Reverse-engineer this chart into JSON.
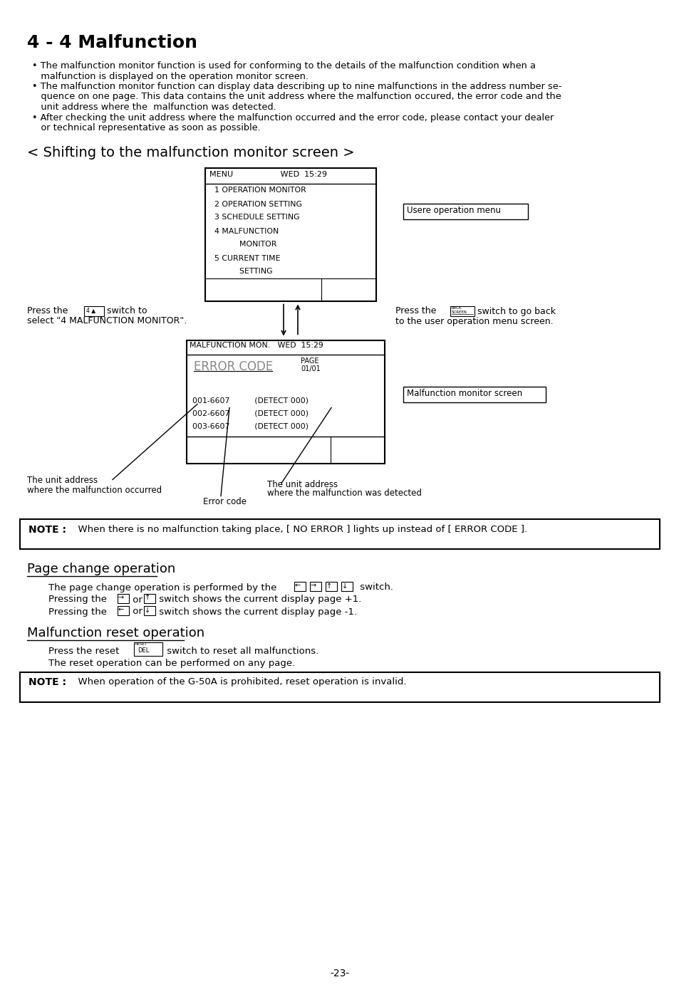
{
  "title": "4 - 4 Malfunction",
  "background_color": "#ffffff",
  "page_number": "-23-",
  "bullet1a": "• The malfunction monitor function is used for conforming to the details of the malfunction condition when a",
  "bullet1b": "   malfunction is displayed on the operation monitor screen.",
  "bullet2a": "• The malfunction monitor function can display data describing up to nine malfunctions in the address number se-",
  "bullet2b": "   quence on one page. This data contains the unit address where the malfunction occured, the error code and the",
  "bullet2c": "   unit address where the  malfunction was detected.",
  "bullet3a": "• After checking the unit address where the malfunction occurred and the error code, please contact your dealer",
  "bullet3b": "   or technical representative as soon as possible.",
  "section1_title": "< Shifting to the malfunction monitor screen >",
  "menu_header": "MENU                   WED  15:29",
  "menu_items": [
    "  1 OPERATION MONITOR",
    "  2 OPERATION SETTING",
    "  3 SCHEDULE SETTING",
    "  4 MALFUNCTION",
    "            MONITOR",
    "  5 CURRENT TIME",
    "            SETTING"
  ],
  "label_user_op_menu": "Usere operation menu",
  "press_left1": "Press the",
  "press_left2": " switch to",
  "press_left3": "select \"4 MALFUNCTION MONITOR\".",
  "press_right1": "Press the",
  "press_right2": " switch to go back",
  "press_right3": "to the user operation menu screen.",
  "malf_header": "MALFUNCTION MON.   WED  15:29",
  "malf_page_label": "PAGE",
  "malf_page_value": "01/01",
  "malf_error_label": "ERROR CODE",
  "malf_rows": [
    "001-6607          (DETECT 000)",
    "002-6607          (DETECT 000)",
    "003-6607          (DETECT 000)"
  ],
  "label_malf_screen": "Malfunction monitor screen",
  "ann1a": "The unit address",
  "ann1b": "where the malfunction occurred",
  "ann2": "Error code",
  "ann3a": "The unit address",
  "ann3b": "where the malfunction was detected",
  "note1_bold": "NOTE :",
  "note1_text": "  When there is no malfunction taking place, [ NO ERROR ] lights up instead of [ ERROR CODE ].",
  "section2_title": "Page change operation",
  "pc_line1a": "The page change operation is performed by the",
  "pc_line1b": " switch.",
  "pc_line2a": "Pressing the",
  "pc_line2b": " or ",
  "pc_line2c": " switch shows the current display page +1.",
  "pc_line3a": "Pressing the",
  "pc_line3b": " or ",
  "pc_line3c": " switch shows the current display page -1.",
  "section3_title": "Malfunction reset operation",
  "reset_line1a": "Press the reset",
  "reset_line1b": " switch to reset all malfunctions.",
  "reset_line2": "The reset operation can be performed on any page.",
  "note2_bold": "NOTE :",
  "note2_text": "  When operation of the G-50A is prohibited, reset operation is invalid."
}
